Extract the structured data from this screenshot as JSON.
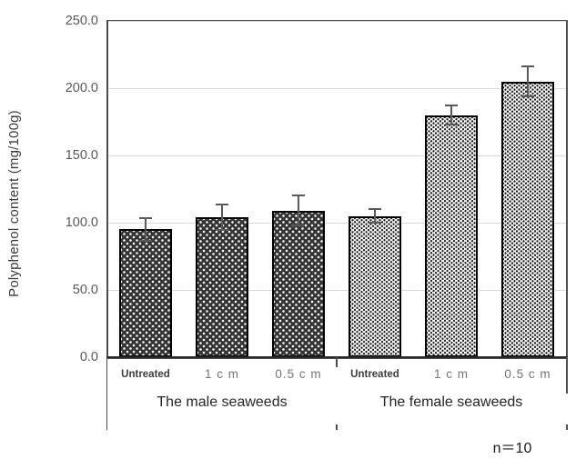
{
  "chart_data": {
    "type": "bar",
    "title": "",
    "xlabel": "",
    "ylabel": "Polyphenol content (mg/100g)",
    "ylim": [
      0,
      250
    ],
    "grid": true,
    "legend": false,
    "annotation": "n＝10",
    "yticks": [
      {
        "value": 0,
        "label": "0.0"
      },
      {
        "value": 50,
        "label": "50.0"
      },
      {
        "value": 100,
        "label": "100.0"
      },
      {
        "value": 150,
        "label": "150.0"
      },
      {
        "value": 200,
        "label": "200.0"
      },
      {
        "value": 250,
        "label": "250.0"
      }
    ],
    "groups": [
      {
        "label": "The male seaweeds",
        "pattern": "dark-dotted-diamond",
        "bars": [
          {
            "category": "Untreated",
            "value": 95,
            "error": 9
          },
          {
            "category": "1 c m",
            "value": 104,
            "error": 10
          },
          {
            "category": "0.5 c m",
            "value": 109,
            "error": 12
          }
        ]
      },
      {
        "label": "The female seaweeds",
        "pattern": "light-dotted",
        "bars": [
          {
            "category": "Untreated",
            "value": 105,
            "error": 6
          },
          {
            "category": "1 c m",
            "value": 180,
            "error": 8
          },
          {
            "category": "0.5 c m",
            "value": 205,
            "error": 12
          }
        ]
      }
    ]
  },
  "colors": {
    "gridline": "#d9d9d9",
    "plot_border": "#4d4d4d",
    "axis_line": "#262626",
    "tick_label": "#595959",
    "error_bar": "#595959",
    "bar_border": "#000000"
  }
}
